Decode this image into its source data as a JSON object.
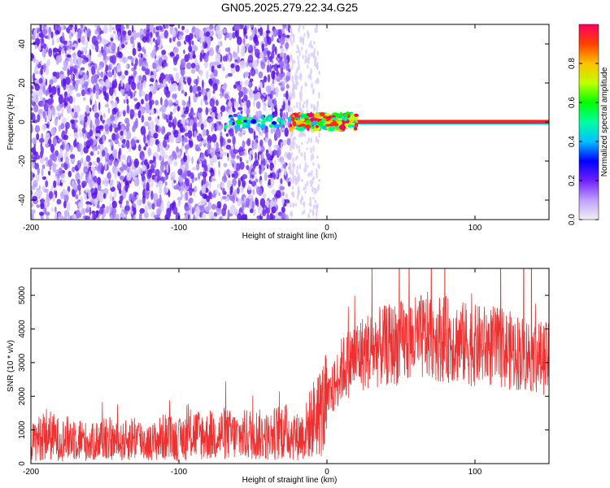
{
  "title": "GN05.2025.279.22.34.G25",
  "chart_data": [
    {
      "type": "heatmap",
      "xlabel": "Height of straight line (km)",
      "ylabel": "Frequency (Hz)",
      "xlim": [
        -200,
        150
      ],
      "ylim": [
        -50,
        50
      ],
      "xticks": [
        -200,
        -100,
        0,
        100
      ],
      "xtick_labels": [
        "-200",
        "-100",
        "0",
        "100"
      ],
      "yticks": [
        -40,
        -20,
        0,
        20,
        40
      ],
      "ytick_labels": [
        "-40",
        "-20",
        "0",
        "20",
        "40"
      ],
      "colorbar": {
        "label": "Normalized spectral amplitude",
        "range": [
          0,
          1
        ],
        "ticks": [
          0,
          0.2,
          0.4,
          0.6,
          0.8
        ],
        "tick_labels": [
          "0.0",
          "0.2",
          "0.4",
          "0.6",
          "0.8"
        ]
      },
      "carrier_line": {
        "frequency_hz": 0,
        "x_start_km": -20,
        "x_end_km": 150,
        "amplitude": 0.9
      },
      "noise_region_x_km": [
        -200,
        -25
      ],
      "color_stops": [
        "#ffffff",
        "#a070ff",
        "#5010e0",
        "#0000ff",
        "#00ffff",
        "#00ff00",
        "#ffff00",
        "#ff8000",
        "#ff0000",
        "#ff00a0"
      ]
    },
    {
      "type": "line",
      "xlabel": "Height of straight line (km)",
      "ylabel": "SNR (10 * v/v)",
      "xlim": [
        -200,
        150
      ],
      "ylim": [
        0,
        5800
      ],
      "xticks": [
        -200,
        -100,
        0,
        100
      ],
      "xtick_labels": [
        "-200",
        "-100",
        "0",
        "100"
      ],
      "yticks": [
        0,
        1000,
        2000,
        3000,
        4000,
        5000
      ],
      "ytick_labels": [
        "0",
        "1000",
        "2000",
        "3000",
        "4000",
        "5000"
      ],
      "series": [
        {
          "name": "SNR",
          "color": "#ee3030",
          "x": [
            -200,
            -190,
            -180,
            -170,
            -160,
            -150,
            -140,
            -130,
            -120,
            -110,
            -100,
            -90,
            -80,
            -70,
            -60,
            -50,
            -40,
            -30,
            -20,
            -15,
            -10,
            -5,
            0,
            5,
            10,
            15,
            20,
            30,
            40,
            50,
            60,
            70,
            80,
            90,
            100,
            110,
            120,
            130,
            140,
            150
          ],
          "values": [
            600,
            900,
            700,
            800,
            600,
            800,
            600,
            800,
            600,
            800,
            700,
            900,
            800,
            900,
            800,
            900,
            800,
            1000,
            800,
            900,
            1300,
            1500,
            1800,
            2300,
            2800,
            3000,
            3200,
            3400,
            3500,
            3600,
            3700,
            3800,
            3700,
            3600,
            3500,
            3500,
            3400,
            3300,
            3200,
            3100
          ]
        }
      ]
    }
  ]
}
